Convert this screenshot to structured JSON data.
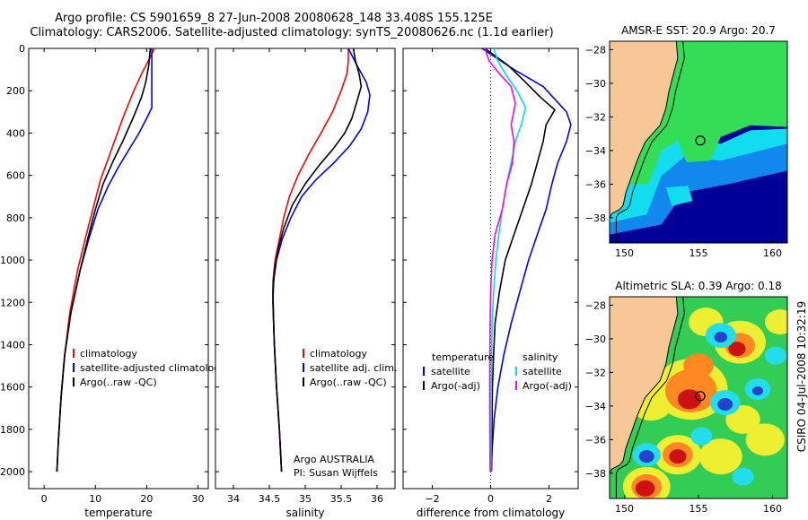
{
  "title_line1": "Argo profile: CS 5901659_8 27-Jun-2008 20080628_148 33.408S 155.125E",
  "title_line2": "Climatology: CARS2006. Satellite-adjusted climatology: synTS_20080626.nc (1.1d earlier)",
  "side_label": "CSIRO 04-Jul-2008 10:32:19",
  "chart_data": [
    {
      "id": "temperature",
      "type": "line",
      "xlabel": "temperature",
      "ylabel": "",
      "xlim": [
        -3,
        32
      ],
      "ylim": [
        2080,
        0
      ],
      "x_ticks": [
        0,
        10,
        20,
        30
      ],
      "y_ticks": [
        0,
        200,
        400,
        600,
        800,
        1000,
        1200,
        1400,
        1600,
        1800,
        2000
      ],
      "legend": {
        "placement": "lower-right",
        "entries": [
          "climatology",
          "satellite-adjusted climatology",
          "Argo(..raw -QC)"
        ]
      },
      "series": [
        {
          "name": "climatology",
          "color": "#ff0000",
          "points": [
            [
              21.5,
              0
            ],
            [
              20.5,
              50
            ],
            [
              19,
              120
            ],
            [
              17.5,
              200
            ],
            [
              15.5,
              320
            ],
            [
              14,
              420
            ],
            [
              12.5,
              520
            ],
            [
              11,
              620
            ],
            [
              9.5,
              760
            ],
            [
              8,
              900
            ],
            [
              6.5,
              1050
            ],
            [
              5,
              1250
            ],
            [
              4,
              1450
            ],
            [
              3.3,
              1650
            ],
            [
              2.8,
              1850
            ],
            [
              2.5,
              2000
            ]
          ]
        },
        {
          "name": "satellite-adjusted climatology",
          "color": "#0000ff",
          "points": [
            [
              21,
              0
            ],
            [
              21,
              150
            ],
            [
              21,
              280
            ],
            [
              20,
              330
            ],
            [
              18.5,
              400
            ],
            [
              16.5,
              480
            ],
            [
              14.5,
              560
            ],
            [
              12.5,
              650
            ],
            [
              10.5,
              760
            ],
            [
              8.7,
              900
            ],
            [
              7,
              1050
            ],
            [
              5.2,
              1250
            ],
            [
              4,
              1450
            ],
            [
              3.3,
              1650
            ],
            [
              2.8,
              1850
            ],
            [
              2.5,
              2000
            ]
          ]
        },
        {
          "name": "Argo(..raw -QC)",
          "color": "#000000",
          "points": [
            [
              20.7,
              0
            ],
            [
              20.4,
              80
            ],
            [
              19.8,
              160
            ],
            [
              19,
              230
            ],
            [
              17.5,
              320
            ],
            [
              15.5,
              430
            ],
            [
              13.5,
              530
            ],
            [
              11.5,
              640
            ],
            [
              10,
              760
            ],
            [
              8.5,
              900
            ],
            [
              7,
              1050
            ],
            [
              5.2,
              1250
            ],
            [
              4,
              1450
            ],
            [
              3.3,
              1650
            ],
            [
              2.8,
              1850
            ],
            [
              2.5,
              2000
            ]
          ]
        }
      ]
    },
    {
      "id": "salinity",
      "type": "line",
      "xlabel": "salinity",
      "ylabel": "",
      "xlim": [
        33.75,
        36.25
      ],
      "ylim": [
        2080,
        0
      ],
      "x_ticks": [
        34,
        34.5,
        35,
        35.5,
        36
      ],
      "legend": {
        "placement": "lower-right",
        "entries": [
          "climatology",
          "satellite adj. clim.",
          "Argo(..raw -QC)"
        ]
      },
      "annotation": [
        "Argo AUSTRALIA",
        "PI: Susan Wijffels"
      ],
      "series": [
        {
          "name": "climatology",
          "color": "#ff0000",
          "points": [
            [
              35.6,
              0
            ],
            [
              35.6,
              60
            ],
            [
              35.58,
              120
            ],
            [
              35.5,
              200
            ],
            [
              35.38,
              300
            ],
            [
              35.22,
              400
            ],
            [
              35.05,
              500
            ],
            [
              34.9,
              600
            ],
            [
              34.78,
              700
            ],
            [
              34.7,
              800
            ],
            [
              34.64,
              900
            ],
            [
              34.58,
              1000
            ],
            [
              34.55,
              1100
            ],
            [
              34.55,
              1200
            ],
            [
              34.57,
              1400
            ],
            [
              34.6,
              1600
            ],
            [
              34.64,
              1800
            ],
            [
              34.67,
              2000
            ]
          ]
        },
        {
          "name": "satellite adj. clim.",
          "color": "#0000ff",
          "points": [
            [
              35.6,
              0
            ],
            [
              35.72,
              80
            ],
            [
              35.85,
              160
            ],
            [
              35.9,
              220
            ],
            [
              35.87,
              300
            ],
            [
              35.78,
              380
            ],
            [
              35.62,
              460
            ],
            [
              35.4,
              540
            ],
            [
              35.15,
              620
            ],
            [
              34.95,
              700
            ],
            [
              34.8,
              800
            ],
            [
              34.68,
              900
            ],
            [
              34.6,
              1000
            ],
            [
              34.56,
              1100
            ],
            [
              34.55,
              1200
            ],
            [
              34.57,
              1400
            ],
            [
              34.6,
              1600
            ],
            [
              34.64,
              1800
            ],
            [
              34.67,
              2000
            ]
          ]
        },
        {
          "name": "Argo(..raw -QC)",
          "color": "#000000",
          "points": [
            [
              35.67,
              0
            ],
            [
              35.7,
              60
            ],
            [
              35.75,
              120
            ],
            [
              35.78,
              180
            ],
            [
              35.72,
              250
            ],
            [
              35.65,
              330
            ],
            [
              35.55,
              400
            ],
            [
              35.4,
              470
            ],
            [
              35.2,
              550
            ],
            [
              35.0,
              640
            ],
            [
              34.82,
              740
            ],
            [
              34.7,
              850
            ],
            [
              34.62,
              950
            ],
            [
              34.57,
              1050
            ],
            [
              34.55,
              1150
            ],
            [
              34.56,
              1300
            ],
            [
              34.57,
              1400
            ],
            [
              34.6,
              1600
            ],
            [
              34.64,
              1800
            ],
            [
              34.67,
              2000
            ]
          ]
        }
      ]
    },
    {
      "id": "difference",
      "type": "line",
      "xlabel": "difference from climatology",
      "ylabel": "",
      "xlim": [
        -3,
        3
      ],
      "ylim": [
        2080,
        0
      ],
      "x_ticks": [
        -2,
        0,
        2
      ],
      "zero_line": true,
      "legend": {
        "placement": "lower-center",
        "groups": [
          {
            "heading": "temperature",
            "entries": [
              "satellite",
              "Argo(-adj)"
            ]
          },
          {
            "heading": "salinity",
            "entries": [
              "satellite",
              "Argo(-adj)"
            ]
          }
        ]
      },
      "series": [
        {
          "name": "temperature satellite",
          "color": "#0000ff",
          "points": [
            [
              -0.3,
              0
            ],
            [
              0.8,
              100
            ],
            [
              1.8,
              180
            ],
            [
              2.6,
              300
            ],
            [
              2.75,
              360
            ],
            [
              2.6,
              440
            ],
            [
              2.3,
              540
            ],
            [
              2.1,
              640
            ],
            [
              1.9,
              760
            ],
            [
              1.6,
              880
            ],
            [
              1.3,
              1000
            ],
            [
              1.0,
              1150
            ],
            [
              0.7,
              1300
            ],
            [
              0.45,
              1450
            ],
            [
              0.25,
              1600
            ],
            [
              0.12,
              1750
            ],
            [
              0.05,
              1900
            ],
            [
              0.02,
              2000
            ]
          ]
        },
        {
          "name": "temperature Argo(-adj)",
          "color": "#000000",
          "points": [
            [
              -0.2,
              0
            ],
            [
              0.6,
              80
            ],
            [
              1.2,
              160
            ],
            [
              1.7,
              230
            ],
            [
              2.2,
              290
            ],
            [
              1.9,
              360
            ],
            [
              1.8,
              440
            ],
            [
              1.6,
              540
            ],
            [
              1.4,
              640
            ],
            [
              1.1,
              760
            ],
            [
              0.8,
              880
            ],
            [
              0.5,
              1000
            ],
            [
              0.3,
              1150
            ],
            [
              0.15,
              1300
            ],
            [
              0.1,
              1450
            ],
            [
              0.06,
              1600
            ],
            [
              0.05,
              1750
            ],
            [
              0.04,
              1900
            ],
            [
              0.03,
              2000
            ]
          ]
        },
        {
          "name": "salinity satellite",
          "color": "#00e0e0",
          "points": [
            [
              0.1,
              0
            ],
            [
              0.25,
              60
            ],
            [
              0.5,
              120
            ],
            [
              0.9,
              200
            ],
            [
              1.2,
              280
            ],
            [
              1.05,
              360
            ],
            [
              0.85,
              440
            ],
            [
              0.7,
              540
            ],
            [
              0.55,
              640
            ],
            [
              0.4,
              760
            ],
            [
              0.28,
              880
            ],
            [
              0.18,
              1000
            ],
            [
              0.1,
              1150
            ],
            [
              0.05,
              1300
            ],
            [
              0.03,
              1500
            ],
            [
              0.02,
              1700
            ],
            [
              0.01,
              2000
            ]
          ]
        },
        {
          "name": "salinity Argo(-adj)",
          "color": "#ff00ff",
          "points": [
            [
              -0.2,
              0
            ],
            [
              -0.05,
              60
            ],
            [
              0.3,
              120
            ],
            [
              0.7,
              180
            ],
            [
              0.85,
              260
            ],
            [
              0.7,
              360
            ],
            [
              0.8,
              440
            ],
            [
              0.75,
              540
            ],
            [
              0.55,
              640
            ],
            [
              0.4,
              760
            ],
            [
              0.15,
              880
            ],
            [
              0.05,
              1000
            ],
            [
              0.0,
              1150
            ],
            [
              -0.02,
              1300
            ],
            [
              -0.03,
              1500
            ],
            [
              -0.03,
              1700
            ],
            [
              -0.02,
              2000
            ]
          ]
        }
      ]
    },
    {
      "id": "sst-map",
      "type": "heatmap",
      "title": "AMSR-E SST: 20.9 Argo: 20.7",
      "xlim": [
        149,
        161
      ],
      "ylim": [
        -39.5,
        -27.5
      ],
      "x_ticks": [
        150,
        155,
        160
      ],
      "y_ticks": [
        -28,
        -30,
        -32,
        -34,
        -36,
        -38
      ],
      "argo_position": [
        155.125,
        -33.408
      ],
      "colors": {
        "land": "#f7c896",
        "warm": "#33dd55",
        "mid": "#11ddee",
        "cool": "#1188ee",
        "cold": "#000099"
      }
    },
    {
      "id": "sla-map",
      "type": "heatmap",
      "title": "Altimetric SLA: 0.39 Argo: 0.18",
      "xlim": [
        149,
        161
      ],
      "ylim": [
        -39.5,
        -27.5
      ],
      "x_ticks": [
        150,
        155,
        160
      ],
      "y_ticks": [
        -28,
        -30,
        -32,
        -34,
        -36,
        -38
      ],
      "argo_position": [
        155.125,
        -33.408
      ],
      "colors": {
        "land": "#f7c896",
        "background": "#33cc55",
        "yellow": "#eeee33",
        "orange": "#ff8822",
        "red": "#cc1111",
        "cyan": "#22ddee",
        "blue": "#2244cc"
      }
    }
  ]
}
